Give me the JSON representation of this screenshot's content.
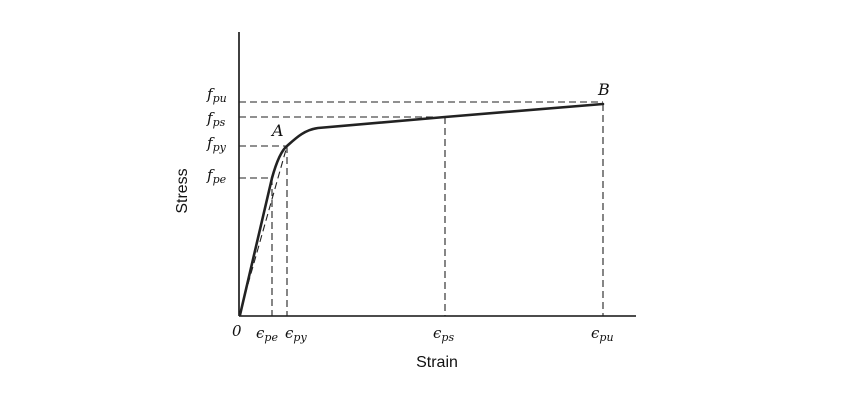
{
  "diagram": {
    "y_axis_title": "Stress",
    "x_axis_title": "Strain",
    "origin_label": "0",
    "stress_levels": {
      "fpu": "fpu",
      "fps": "fps",
      "fpy": "fpy",
      "fpe": "fpe"
    },
    "strain_levels": {
      "epe": "ϵpe",
      "epy": "ϵpy",
      "eps": "ϵps",
      "epu": "ϵpu"
    },
    "points": {
      "A": "A",
      "B": "B"
    }
  }
}
